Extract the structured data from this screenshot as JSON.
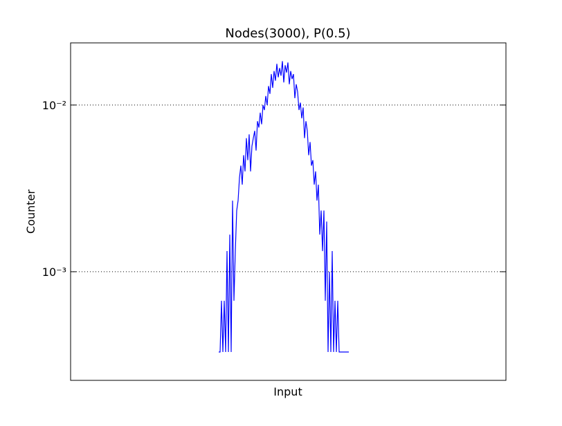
{
  "chart_data": {
    "type": "line",
    "title": "Nodes(3000), P(0.5)",
    "x_label": "Input",
    "y_label": "Counter",
    "yscale": "log",
    "grid": true,
    "ylim": [
      0.000223,
      0.0236
    ],
    "yticks": [
      {
        "value": 0.001,
        "label": "10⁻³"
      },
      {
        "value": 0.01,
        "label": "10⁻²"
      }
    ],
    "xlim": [
      1192,
      1821
    ],
    "x": [
      1406,
      1408,
      1410,
      1412,
      1414,
      1416,
      1418,
      1420,
      1422,
      1424,
      1426,
      1428,
      1430,
      1432,
      1434,
      1436,
      1438,
      1440,
      1442,
      1444,
      1446,
      1448,
      1450,
      1452,
      1454,
      1456,
      1458,
      1460,
      1462,
      1464,
      1466,
      1468,
      1470,
      1472,
      1474,
      1476,
      1478,
      1480,
      1482,
      1484,
      1486,
      1488,
      1490,
      1492,
      1494,
      1496,
      1498,
      1500,
      1502,
      1504,
      1506,
      1508,
      1510,
      1512,
      1514,
      1516,
      1518,
      1520,
      1522,
      1524,
      1526,
      1528,
      1530,
      1532,
      1534,
      1536,
      1538,
      1540,
      1542,
      1544,
      1546,
      1548,
      1550,
      1552,
      1554,
      1556,
      1558,
      1560,
      1562,
      1564,
      1566,
      1568,
      1570,
      1572,
      1574,
      1576,
      1578,
      1580,
      1582,
      1584,
      1586,
      1588,
      1590,
      1592,
      1594
    ],
    "series": [
      {
        "color": "#0000ff",
        "values": [
          0.00033,
          0.00033,
          0.00067,
          0.00033,
          0.00067,
          0.00033,
          0.00133,
          0.00033,
          0.00167,
          0.00033,
          0.00267,
          0.00067,
          0.00133,
          0.00233,
          0.00267,
          0.00367,
          0.00433,
          0.00333,
          0.005,
          0.004,
          0.00633,
          0.00467,
          0.00667,
          0.004,
          0.00567,
          0.00633,
          0.007,
          0.00533,
          0.008,
          0.00733,
          0.009,
          0.00767,
          0.01,
          0.00933,
          0.01133,
          0.01,
          0.013,
          0.01167,
          0.01533,
          0.01267,
          0.016,
          0.014,
          0.01767,
          0.01467,
          0.01667,
          0.015,
          0.01833,
          0.01367,
          0.01733,
          0.01567,
          0.018,
          0.01333,
          0.016,
          0.01433,
          0.01533,
          0.011,
          0.01333,
          0.012,
          0.00933,
          0.01033,
          0.00833,
          0.00967,
          0.00633,
          0.008,
          0.007,
          0.005,
          0.006,
          0.00433,
          0.00467,
          0.00333,
          0.004,
          0.00267,
          0.00333,
          0.00167,
          0.00233,
          0.00133,
          0.00233,
          0.00067,
          0.002,
          0.00033,
          0.001,
          0.00033,
          0.00133,
          0.00033,
          0.00067,
          0.00033,
          0.00067,
          0.00033,
          0.00033,
          0.00033,
          0.00033,
          0.00033,
          0.00033,
          0.00033,
          0.00033
        ]
      }
    ]
  }
}
